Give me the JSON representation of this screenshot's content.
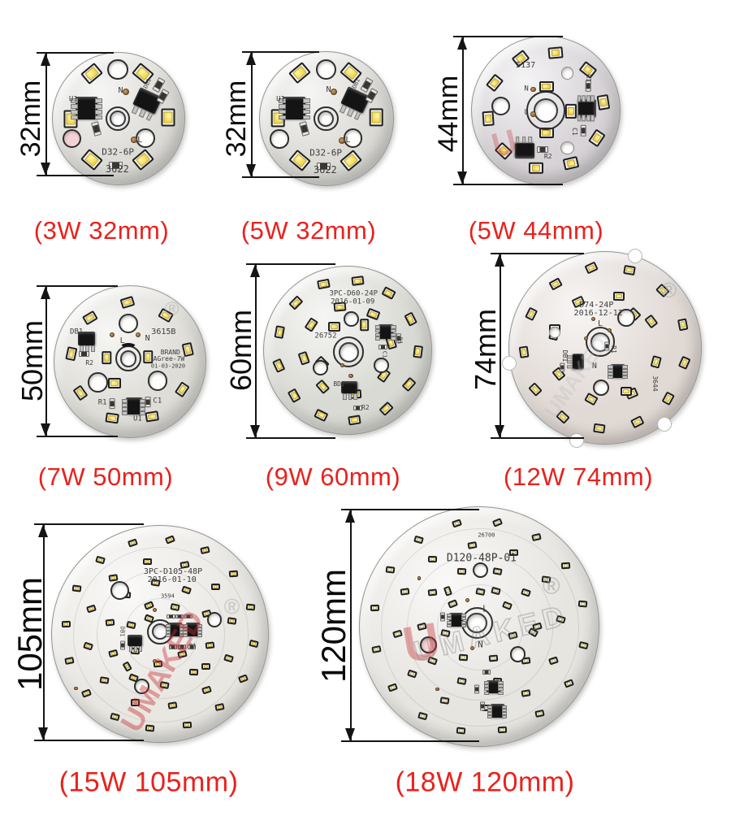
{
  "page": {
    "background": "#ffffff",
    "caption_color": "#e8221d"
  },
  "watermark": {
    "brand": "UMAKED",
    "logo_letter": "U",
    "registered": "®"
  },
  "boards": [
    {
      "id": "board-3w-32mm",
      "caption": "(3W 32mm)",
      "power": "3W",
      "diameter_mm": 32,
      "dimension_label": "32mm",
      "led_count": 6,
      "pcb_color": "#dcdbd6",
      "led_color": "#f2d84e",
      "markings": [
        {
          "text": "D32-6P"
        },
        {
          "text": "3622"
        },
        {
          "text": "U1"
        },
        {
          "text": "N"
        },
        {
          "text": "L"
        },
        {
          "text": "DB1"
        }
      ]
    },
    {
      "id": "board-5w-32mm",
      "caption": "(5W 32mm)",
      "power": "5W",
      "diameter_mm": 32,
      "dimension_label": "32mm",
      "led_count": 6,
      "pcb_color": "#dcdbd6",
      "led_color": "#f2d84e",
      "markings": [
        {
          "text": "D32-6P"
        },
        {
          "text": "3622"
        },
        {
          "text": "U1"
        },
        {
          "text": "N"
        },
        {
          "text": "L"
        },
        {
          "text": "DB1"
        }
      ]
    },
    {
      "id": "board-5w-44mm",
      "caption": "(5W 44mm)",
      "power": "5W",
      "diameter_mm": 44,
      "dimension_label": "44mm",
      "led_count": 13,
      "pcb_color": "#d7d3d7",
      "led_color": "#f0cf45",
      "markings": [
        {
          "text": "5137"
        },
        {
          "text": "N"
        },
        {
          "text": "L"
        },
        {
          "text": "R1"
        },
        {
          "text": "C1"
        },
        {
          "text": "R2"
        }
      ]
    },
    {
      "id": "board-7w-50mm",
      "caption": "(7W 50mm)",
      "power": "7W",
      "diameter_mm": 50,
      "dimension_label": "50mm",
      "led_count": 12,
      "pcb_color": "#deddd7",
      "led_color": "#f2d84e",
      "markings": [
        {
          "text": "DB1"
        },
        {
          "text": "R2"
        },
        {
          "text": "3615B"
        },
        {
          "text": "L"
        },
        {
          "text": "N"
        },
        {
          "text": "BRAND"
        },
        {
          "text": "AGree-7W"
        },
        {
          "text": "01-03-2020"
        },
        {
          "text": "R1"
        },
        {
          "text": "U1"
        },
        {
          "text": "C1"
        }
      ]
    },
    {
      "id": "board-9w-60mm",
      "caption": "(9W 60mm)",
      "power": "9W",
      "diameter_mm": 60,
      "dimension_label": "60mm",
      "led_count": 24,
      "pcb_color": "#dadad4",
      "led_color": "#f2d84e",
      "markings": [
        {
          "text": "3PC-D60-24P"
        },
        {
          "text": "2016-01-09"
        },
        {
          "text": "26752"
        },
        {
          "text": "C1"
        },
        {
          "text": "R1"
        },
        {
          "text": "BD1"
        },
        {
          "text": "R2"
        }
      ]
    },
    {
      "id": "board-12w-74mm",
      "caption": "(12W 74mm)",
      "power": "12W",
      "diameter_mm": 74,
      "dimension_label": "74mm",
      "led_count": 24,
      "pcb_color": "#e1d9d4",
      "led_color": "#f5e04f",
      "markings": [
        {
          "text": "D74-24P"
        },
        {
          "text": "2016-12-12"
        },
        {
          "text": "L"
        },
        {
          "text": "R1"
        },
        {
          "text": "DB1"
        },
        {
          "text": "N"
        },
        {
          "text": "3644"
        }
      ]
    },
    {
      "id": "board-15w-105mm",
      "caption": "(15W 105mm)",
      "power": "15W",
      "diameter_mm": 105,
      "dimension_label": "105mm",
      "led_count": 48,
      "pcb_color": "#e9e7e2",
      "led_color": "#f3de52",
      "markings": [
        {
          "text": "3PC-D105-48P"
        },
        {
          "text": "2016-01-10"
        },
        {
          "text": "3594"
        },
        {
          "text": "DB1"
        },
        {
          "text": "N"
        },
        {
          "text": "R2"
        },
        {
          "text": "R1"
        }
      ]
    },
    {
      "id": "board-18w-120mm",
      "caption": "(18W 120mm)",
      "power": "18W",
      "diameter_mm": 120,
      "dimension_label": "120mm",
      "led_count": 48,
      "pcb_color": "#e7e5e0",
      "led_color": "#f0ecd2",
      "markings": [
        {
          "text": "26700"
        },
        {
          "text": "D120-48P-01"
        },
        {
          "text": "L"
        },
        {
          "text": "N"
        }
      ]
    }
  ]
}
